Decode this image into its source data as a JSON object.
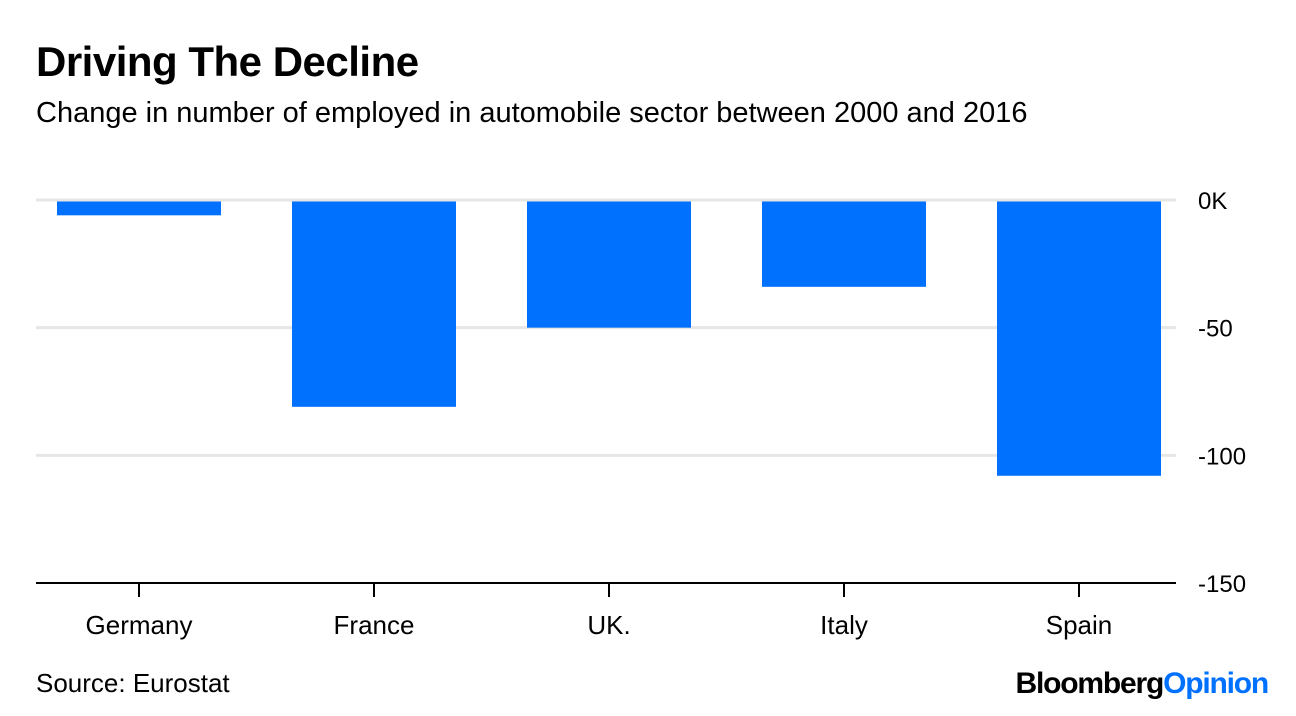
{
  "title": "Driving The Decline",
  "subtitle": "Change in number of employed in automobile sector between 2000 and 2016",
  "source": "Source: Eurostat",
  "logo": {
    "part1": "Bloomberg",
    "part2": "Opinion"
  },
  "colors": {
    "bar": "#0070ff",
    "grid": "#e6e6e6",
    "axis": "#000000",
    "text": "#000000"
  },
  "chart_data": {
    "type": "bar",
    "categories": [
      "Germany",
      "France",
      "UK.",
      "Italy",
      "Spain"
    ],
    "values": [
      -6,
      -81,
      -50,
      -34,
      -108
    ],
    "ylim": [
      -150,
      0
    ],
    "yticks": [
      0,
      -50,
      -100,
      -150
    ],
    "ytick_labels": [
      "0K",
      "-50",
      "-100",
      "-150"
    ],
    "xlabel": "",
    "ylabel": "",
    "grid": true,
    "y_axis_side": "right"
  }
}
